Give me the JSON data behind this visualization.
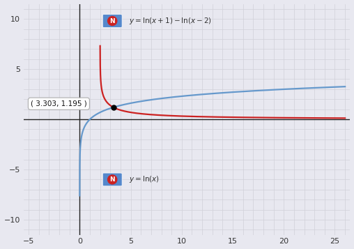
{
  "xlim": [
    -5.5,
    26.5
  ],
  "ylim": [
    -11.5,
    11.5
  ],
  "xticks": [
    -5,
    0,
    5,
    10,
    15,
    20,
    25
  ],
  "yticks": [
    -10,
    -5,
    5,
    10
  ],
  "color_red": "#cc2222",
  "color_blue": "#6699cc",
  "color_grid": "#cccccc",
  "bg_color": "#e8e8f0",
  "intersection_x": 3.303,
  "intersection_y": 1.195,
  "annotation_text": "( 3.303, 1.195 )",
  "axis_color": "#333333",
  "icon_bg_red": "#4477bb",
  "icon_bg_blue": "#4477bb"
}
